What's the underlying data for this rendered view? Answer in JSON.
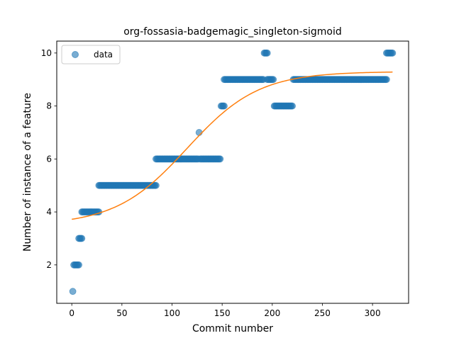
{
  "chart_data": {
    "type": "scatter",
    "title": "org-fossasia-badgemagic_singleton-sigmoid",
    "xlabel": "Commit number",
    "ylabel": "Number of instance of a feature",
    "xlim": [
      -15,
      336
    ],
    "ylim": [
      0.55,
      10.45
    ],
    "xticks": [
      0,
      50,
      100,
      150,
      200,
      250,
      300
    ],
    "yticks": [
      2,
      4,
      6,
      8,
      10
    ],
    "grid": false,
    "legend": {
      "position": "top-left",
      "entries": [
        {
          "label": "data",
          "marker": "circle",
          "color": "#1f77b4"
        }
      ]
    },
    "series": [
      {
        "name": "data",
        "kind": "scatter",
        "color": "#1f77b4",
        "opacity": 0.6,
        "runs": [
          {
            "x_start": 1,
            "x_end": 1,
            "y": 1
          },
          {
            "x_start": 2,
            "x_end": 7,
            "y": 2
          },
          {
            "x_start": 7,
            "x_end": 10,
            "y": 3
          },
          {
            "x_start": 10,
            "x_end": 27,
            "y": 4
          },
          {
            "x_start": 27,
            "x_end": 84,
            "y": 5
          },
          {
            "x_start": 84,
            "x_end": 126,
            "y": 6
          },
          {
            "x_start": 127,
            "x_end": 127,
            "y": 7
          },
          {
            "x_start": 128,
            "x_end": 148,
            "y": 6
          },
          {
            "x_start": 149,
            "x_end": 152,
            "y": 8
          },
          {
            "x_start": 152,
            "x_end": 191,
            "y": 9
          },
          {
            "x_start": 192,
            "x_end": 195,
            "y": 10
          },
          {
            "x_start": 195,
            "x_end": 201,
            "y": 9
          },
          {
            "x_start": 202,
            "x_end": 220,
            "y": 8
          },
          {
            "x_start": 221,
            "x_end": 314,
            "y": 9
          },
          {
            "x_start": 314,
            "x_end": 320,
            "y": 10
          }
        ]
      },
      {
        "name": "",
        "kind": "line",
        "model": "sigmoid",
        "color": "#ff7f0e",
        "x_range": [
          0,
          320
        ],
        "params": {
          "lower": 3.5,
          "upper": 9.3,
          "midpoint": 115,
          "slope": 0.028
        }
      }
    ]
  }
}
